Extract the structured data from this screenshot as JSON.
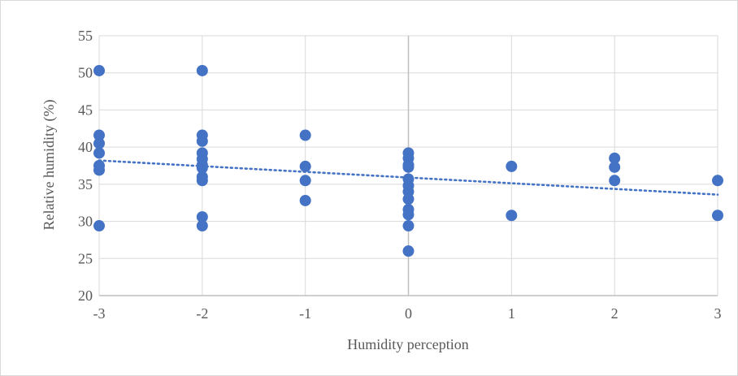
{
  "chart_data": {
    "type": "scatter",
    "xlabel": "Humidity perception",
    "ylabel": "Relative humidity (%)",
    "xlim": [
      -3,
      3
    ],
    "ylim": [
      20,
      55
    ],
    "x_ticks": [
      "-3",
      "-2",
      "-1",
      "0",
      "1",
      "2",
      "3"
    ],
    "y_ticks": [
      "20",
      "25",
      "30",
      "35",
      "40",
      "45",
      "50",
      "55"
    ],
    "grid": true,
    "legend": "none",
    "colors": {
      "points": "#4472c4",
      "trendline": "#4472c4",
      "grid": "#d9d9d9",
      "zero_axis": "#bfbfbf"
    },
    "series": [
      {
        "points": [
          {
            "x": -3,
            "y": 50.3
          },
          {
            "x": -3,
            "y": 41.6
          },
          {
            "x": -3,
            "y": 40.5
          },
          {
            "x": -3,
            "y": 39.2
          },
          {
            "x": -3,
            "y": 37.5
          },
          {
            "x": -3,
            "y": 36.9
          },
          {
            "x": -3,
            "y": 29.4
          },
          {
            "x": -2,
            "y": 50.3
          },
          {
            "x": -2,
            "y": 41.6
          },
          {
            "x": -2,
            "y": 40.8
          },
          {
            "x": -2,
            "y": 39.2
          },
          {
            "x": -2,
            "y": 38.4
          },
          {
            "x": -2,
            "y": 37.6
          },
          {
            "x": -2,
            "y": 37.2
          },
          {
            "x": -2,
            "y": 36.0
          },
          {
            "x": -2,
            "y": 35.5
          },
          {
            "x": -2,
            "y": 30.6
          },
          {
            "x": -2,
            "y": 29.4
          },
          {
            "x": -1,
            "y": 41.6
          },
          {
            "x": -1,
            "y": 37.4
          },
          {
            "x": -1,
            "y": 35.5
          },
          {
            "x": -1,
            "y": 32.8
          },
          {
            "x": 0,
            "y": 39.2
          },
          {
            "x": 0,
            "y": 38.5
          },
          {
            "x": 0,
            "y": 37.6
          },
          {
            "x": 0,
            "y": 37.3
          },
          {
            "x": 0,
            "y": 35.7
          },
          {
            "x": 0,
            "y": 34.8
          },
          {
            "x": 0,
            "y": 34.0
          },
          {
            "x": 0,
            "y": 33.0
          },
          {
            "x": 0,
            "y": 31.6
          },
          {
            "x": 0,
            "y": 30.9
          },
          {
            "x": 0,
            "y": 29.4
          },
          {
            "x": 0,
            "y": 26.0
          },
          {
            "x": 1,
            "y": 37.4
          },
          {
            "x": 1,
            "y": 30.8
          },
          {
            "x": 2,
            "y": 38.5
          },
          {
            "x": 2,
            "y": 37.3
          },
          {
            "x": 2,
            "y": 35.5
          },
          {
            "x": 3,
            "y": 35.5
          },
          {
            "x": 3,
            "y": 30.8
          }
        ]
      }
    ],
    "trendline": {
      "type": "linear",
      "style": "dotted",
      "points": [
        {
          "x": -3,
          "y": 38.2
        },
        {
          "x": 3,
          "y": 33.6
        }
      ]
    }
  }
}
